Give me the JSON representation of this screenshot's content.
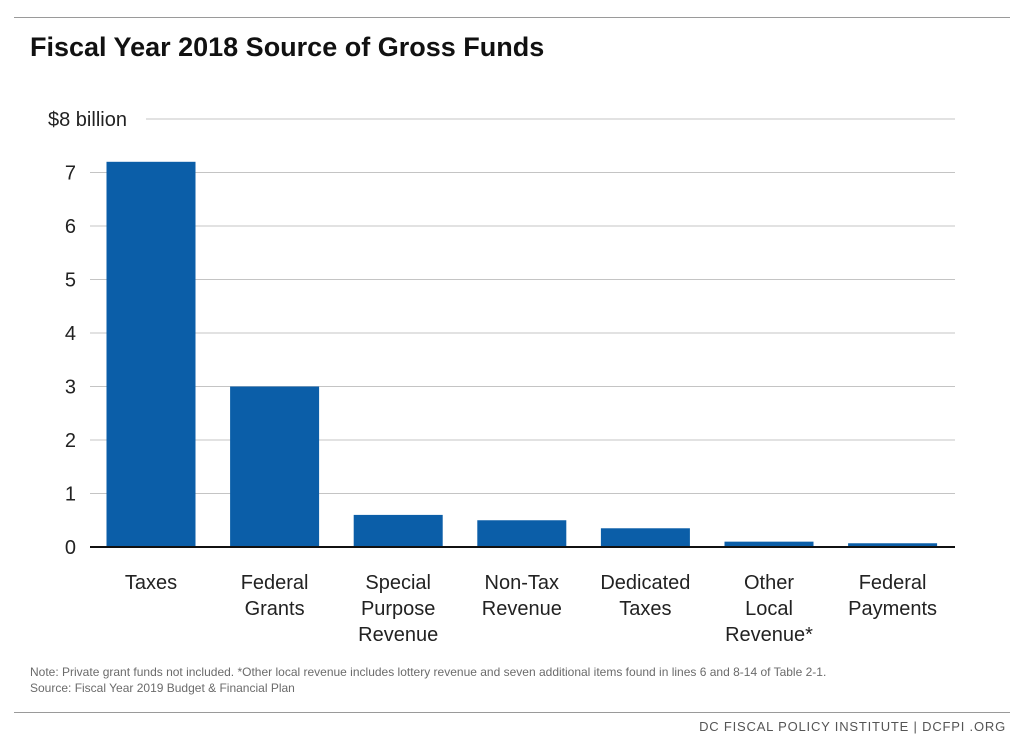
{
  "title": "Fiscal Year 2018 Source of Gross Funds",
  "chart_data": {
    "type": "bar",
    "title": "Fiscal Year 2018 Source of Gross Funds",
    "xlabel": "",
    "ylabel": "",
    "ylim": [
      0,
      8
    ],
    "y_ticks": [
      0,
      1,
      2,
      3,
      4,
      5,
      6,
      7,
      8
    ],
    "y_tick_labels": [
      "0",
      "1",
      "2",
      "3",
      "4",
      "5",
      "6",
      "7",
      "$8 billion"
    ],
    "grid": true,
    "legend": "none",
    "bar_color": "#0b5ea8",
    "categories": [
      [
        "Taxes"
      ],
      [
        "Federal",
        "Grants"
      ],
      [
        "Special",
        "Purpose",
        "Revenue"
      ],
      [
        "Non-Tax",
        "Revenue"
      ],
      [
        "Dedicated",
        "Taxes"
      ],
      [
        "Other",
        "Local",
        "Revenue*"
      ],
      [
        "Federal",
        "Payments"
      ]
    ],
    "values": [
      7.2,
      3.0,
      0.6,
      0.5,
      0.35,
      0.1,
      0.07
    ]
  },
  "note": {
    "line1": "Note: Private grant funds not included. *Other local revenue includes lottery revenue and seven additional items found in lines 6 and 8-14 of Table 2-1.",
    "line2": "Source: Fiscal Year 2019 Budget & Financial Plan"
  },
  "footer": "DC FISCAL POLICY INSTITUTE  |  DCFPI .ORG"
}
